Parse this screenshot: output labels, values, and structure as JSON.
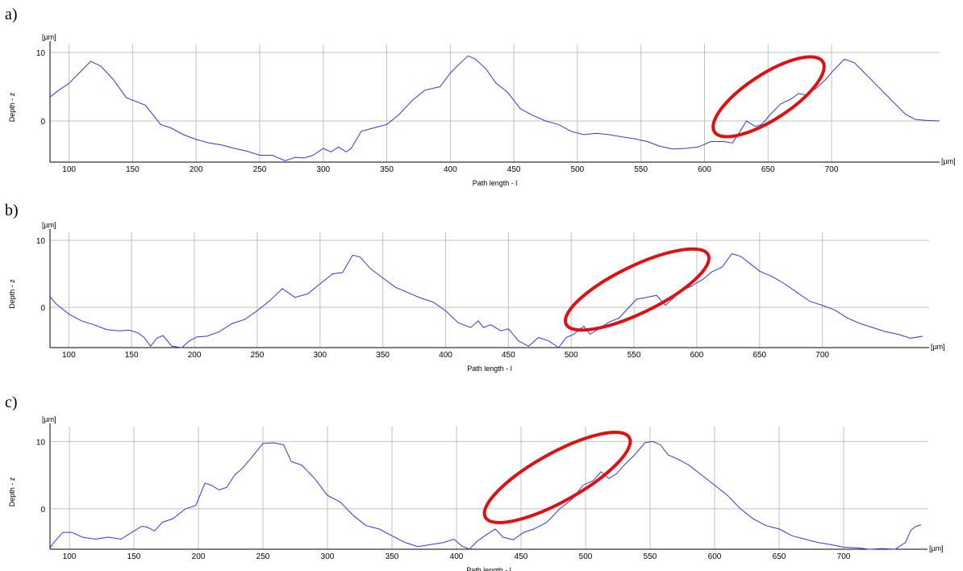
{
  "chart_data": [
    {
      "panel": "a)",
      "type": "line",
      "xlabel": "Path length - l",
      "ylabel": "Depth - z",
      "x_unit": "[µm]",
      "y_unit": "[µm]",
      "xlim": [
        85,
        785
      ],
      "ylim": [
        -6,
        10
      ],
      "x_ticks": [
        100,
        150,
        200,
        250,
        300,
        350,
        400,
        450,
        500,
        550,
        600,
        650,
        700
      ],
      "y_ticks": [
        0,
        10
      ],
      "grid": true,
      "series": [
        {
          "x": [
            85,
            92,
            100,
            108,
            117,
            125,
            135,
            145,
            160,
            172,
            180,
            190,
            200,
            210,
            220,
            230,
            240,
            250,
            260,
            270,
            278,
            285,
            292,
            300,
            306,
            312,
            318,
            322,
            330,
            340,
            350,
            360,
            370,
            380,
            392,
            400,
            408,
            414,
            420,
            428,
            436,
            445,
            455,
            465,
            475,
            485,
            495,
            505,
            515,
            525,
            535,
            545,
            555,
            565,
            575,
            585,
            595,
            605,
            615,
            622,
            628,
            633,
            640,
            645,
            652,
            660,
            668,
            674,
            680,
            688,
            695,
            702,
            710,
            718,
            726,
            734,
            742,
            750,
            758,
            766,
            774,
            785
          ],
          "y": [
            3.5,
            4.5,
            5.5,
            7,
            8.7,
            8,
            6,
            3.4,
            2.3,
            -0.5,
            -1,
            -2,
            -2.7,
            -3.2,
            -3.5,
            -4,
            -4.4,
            -5,
            -5,
            -5.8,
            -5.3,
            -5.4,
            -5,
            -4,
            -4.5,
            -3.8,
            -4.5,
            -4,
            -1.5,
            -1,
            -0.5,
            1,
            3,
            4.5,
            5,
            7,
            8.5,
            9.5,
            9,
            7.6,
            5.5,
            4.2,
            1.8,
            0.8,
            0,
            -0.5,
            -1.5,
            -2,
            -1.8,
            -2,
            -2.3,
            -2.6,
            -3,
            -3.7,
            -4.1,
            -4,
            -3.8,
            -3,
            -3,
            -3.2,
            -1.5,
            0,
            -0.8,
            -0.5,
            1,
            2.5,
            3.2,
            4,
            3.8,
            4.8,
            6,
            7.5,
            9,
            8.5,
            7,
            5.5,
            4,
            2.5,
            1,
            0.2,
            0.1,
            0
          ]
        }
      ]
    },
    {
      "panel": "b)",
      "type": "line",
      "xlabel": "Path length - l",
      "ylabel": "Depth - z",
      "x_unit": "[µm]",
      "y_unit": "[µm]",
      "xlim": [
        85,
        785
      ],
      "ylim": [
        -6,
        10
      ],
      "x_ticks": [
        100,
        150,
        200,
        250,
        300,
        350,
        400,
        450,
        500,
        550,
        600,
        650,
        700
      ],
      "y_ticks": [
        0,
        10
      ],
      "grid": true,
      "series": [
        {
          "x": [
            85,
            90,
            100,
            110,
            120,
            130,
            140,
            148,
            155,
            160,
            165,
            170,
            175,
            182,
            190,
            196,
            202,
            210,
            220,
            230,
            240,
            250,
            260,
            270,
            280,
            290,
            300,
            310,
            318,
            326,
            332,
            340,
            350,
            360,
            370,
            380,
            390,
            400,
            410,
            420,
            426,
            430,
            436,
            444,
            450,
            458,
            466,
            474,
            482,
            490,
            496,
            502,
            510,
            515,
            522,
            530,
            538,
            546,
            552,
            560,
            568,
            575,
            582,
            588,
            596,
            605,
            612,
            620,
            628,
            635,
            642,
            650,
            660,
            670,
            680,
            690,
            700,
            710,
            720,
            730,
            740,
            750,
            760,
            770,
            780
          ],
          "y": [
            1.6,
            0.5,
            -1,
            -2,
            -2.6,
            -3.3,
            -3.5,
            -3.4,
            -3.8,
            -4.5,
            -5.8,
            -4.6,
            -4.2,
            -5.8,
            -6,
            -5,
            -4.4,
            -4.3,
            -3.6,
            -2.4,
            -1.8,
            -0.5,
            1,
            2.8,
            1.5,
            2,
            3.5,
            5,
            5.2,
            7.8,
            7.5,
            5.8,
            4.4,
            3,
            2.2,
            1.4,
            0.8,
            -0.5,
            -2.3,
            -3,
            -2,
            -3,
            -2.6,
            -3.5,
            -3.2,
            -5,
            -5.8,
            -4.5,
            -5,
            -6,
            -4.5,
            -4,
            -2.8,
            -4,
            -3.2,
            -2.2,
            -1.6,
            0,
            1.2,
            1.5,
            1.8,
            0.3,
            1.5,
            2.5,
            3.2,
            4.2,
            5.3,
            6,
            8,
            7.6,
            6.6,
            5.4,
            4.6,
            3.5,
            2.2,
            0.9,
            0.3,
            -0.4,
            -1.6,
            -2.4,
            -3,
            -3.6,
            -4,
            -4.6,
            -4.3
          ]
        }
      ]
    },
    {
      "panel": "c)",
      "type": "line",
      "xlabel": "Path length - l",
      "ylabel": "Depth - z",
      "x_unit": "[µm]",
      "y_unit": "[µm]",
      "xlim": [
        85,
        765
      ],
      "ylim": [
        -6,
        11
      ],
      "x_ticks": [
        100,
        150,
        200,
        250,
        300,
        350,
        400,
        450,
        500,
        550,
        600,
        650,
        700
      ],
      "y_ticks": [
        0,
        10
      ],
      "grid": true,
      "series": [
        {
          "x": [
            85,
            88,
            95,
            102,
            110,
            120,
            130,
            140,
            150,
            156,
            160,
            166,
            172,
            180,
            190,
            198,
            205,
            210,
            216,
            222,
            228,
            234,
            242,
            250,
            258,
            266,
            272,
            280,
            290,
            300,
            310,
            320,
            330,
            340,
            350,
            360,
            370,
            380,
            390,
            398,
            404,
            410,
            416,
            422,
            430,
            436,
            444,
            452,
            460,
            470,
            480,
            490,
            498,
            506,
            512,
            518,
            524,
            530,
            538,
            546,
            552,
            558,
            564,
            570,
            580,
            590,
            600,
            610,
            620,
            630,
            640,
            650,
            660,
            670,
            680,
            690,
            700,
            710,
            720,
            730,
            740,
            748,
            752,
            756,
            760
          ],
          "y": [
            -5.8,
            -5,
            -3.5,
            -3.5,
            -4.2,
            -4.5,
            -4.2,
            -4.5,
            -3.3,
            -2.6,
            -2.7,
            -3.3,
            -2,
            -1.5,
            0,
            0.5,
            3.8,
            3.5,
            2.8,
            3.2,
            5,
            6,
            7.8,
            9.7,
            9.8,
            9.5,
            7,
            6.5,
            4.5,
            2,
            1,
            -1,
            -2.5,
            -3,
            -4,
            -5,
            -5.6,
            -5.3,
            -5,
            -4.5,
            -5.5,
            -6,
            -4.8,
            -4,
            -3,
            -4.2,
            -4.6,
            -3.5,
            -3,
            -2,
            0,
            1.5,
            3.5,
            4.2,
            5.5,
            4.5,
            5.2,
            6.5,
            8,
            9.8,
            10,
            9.5,
            8,
            7.5,
            6.5,
            5,
            3.5,
            2,
            0,
            -1.5,
            -2.5,
            -3,
            -4,
            -4.5,
            -5,
            -5.3,
            -5.7,
            -5.8,
            -6,
            -5.9,
            -6,
            -5,
            -3.2,
            -2.6,
            -2.4
          ]
        }
      ]
    }
  ]
}
